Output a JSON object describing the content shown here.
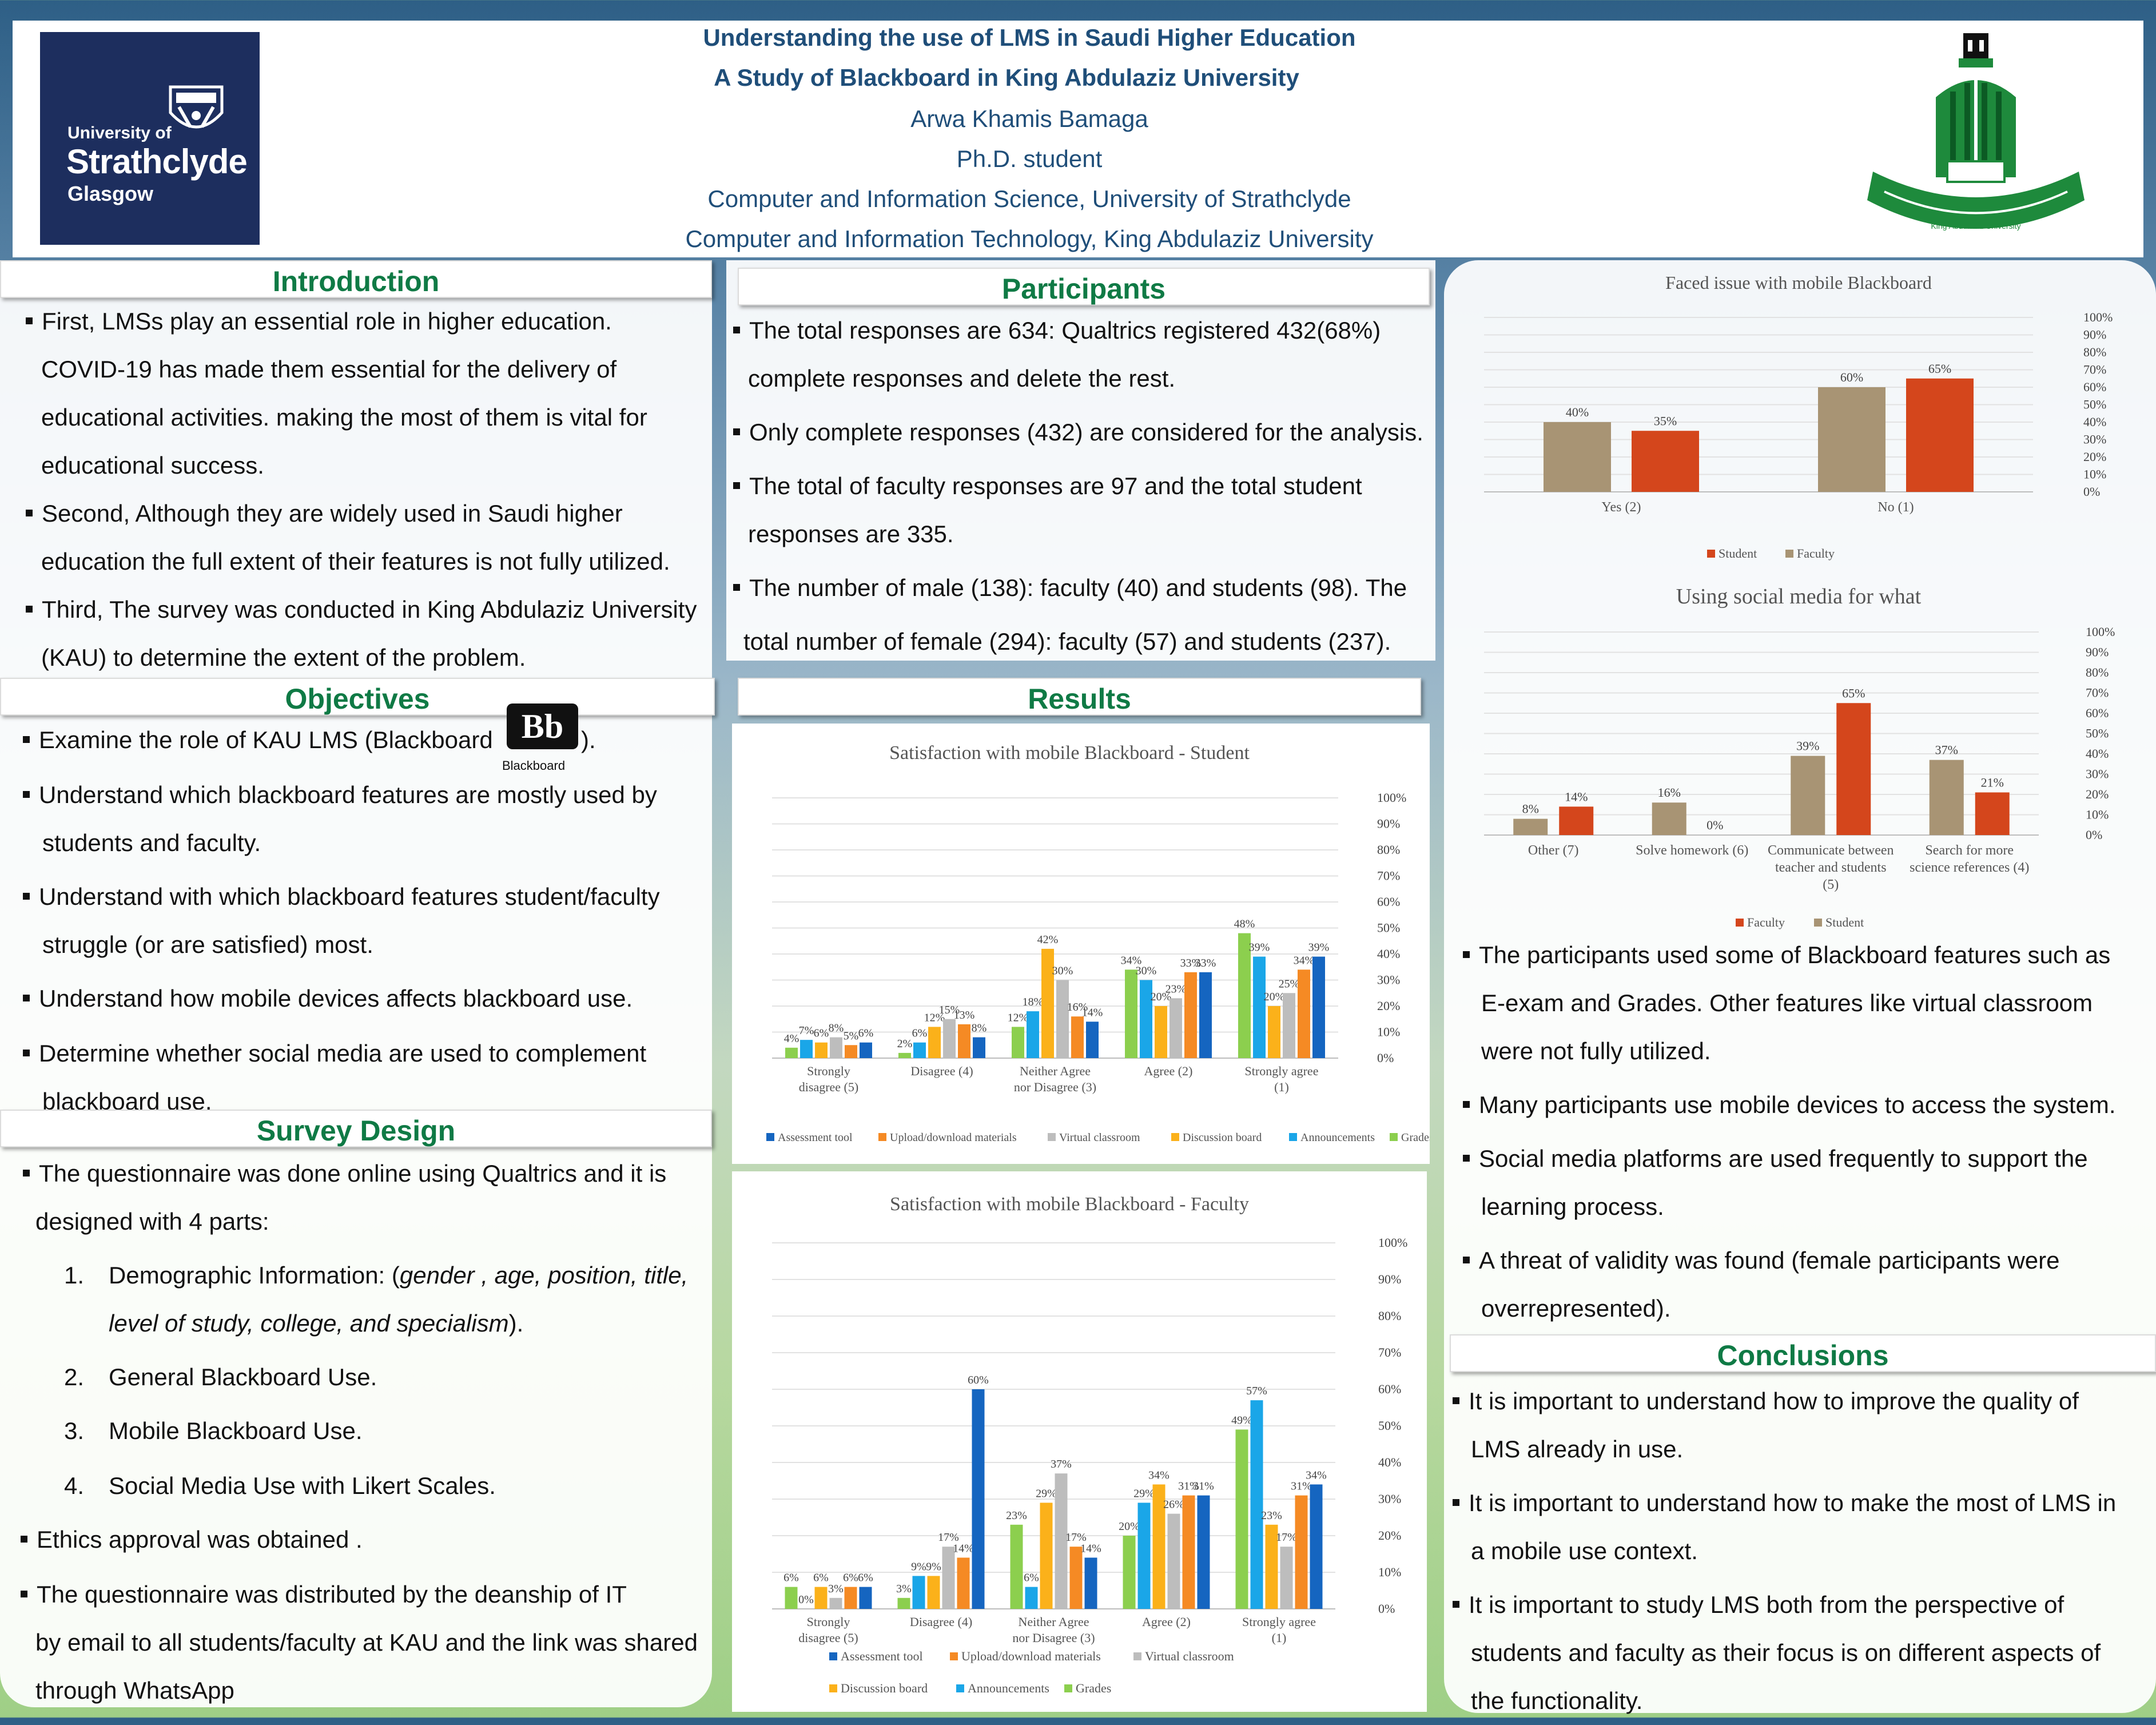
{
  "header": {
    "title1": "Understanding  the use of LMS in Saudi Higher Education",
    "title2": "A Study of Blackboard  in King Abdulaziz University",
    "author": "Arwa Khamis Bamaga",
    "role": "Ph.D. student",
    "affil1": "Computer and Information Science, University of Strathclyde",
    "affil2": "Computer and Information Technology, King Abdulaziz University",
    "strath_logo": {
      "l1": "University of",
      "l2": "Strathclyde",
      "l3": "Glasgow"
    },
    "kau_logo_text": "King Abdulaziz University"
  },
  "colors": {
    "heading": "#0f7a45",
    "title": "#1f4e79",
    "strath_navy": "#1d2e5e",
    "kau_green": "#1e8a3c",
    "student_brown": "#a89474",
    "faculty_orange": "#d4461c"
  },
  "introduction": {
    "heading": "Introduction",
    "lines": [
      "First, LMSs play an essential role in higher education.",
      "COVID-19 has made them essential for the delivery of",
      "educational activities. making the most of them is vital for",
      "educational success.",
      "Second, Although they are widely used in Saudi higher",
      "education the full extent of their features is not fully utilized.",
      "Third, The survey was conducted in King Abdulaziz University",
      "(KAU) to determine the extent of the problem."
    ]
  },
  "objectives": {
    "heading": "Objectives",
    "lines": [
      "Examine the role of  KAU LMS (Blackboard",
      ").",
      "Understand which blackboard features are mostly used by",
      "students and faculty.",
      "Understand with which blackboard features student/faculty",
      "struggle (or are satisfied) most.",
      "Understand how mobile devices affects blackboard use.",
      "Determine whether social media are used to complement",
      "blackboard use."
    ],
    "bb_logo": "Bb",
    "bb_caption": "Blackboard"
  },
  "survey": {
    "heading": "Survey Design",
    "lines": [
      "The questionnaire was done online using Qualtrics and it is",
      "designed with 4 parts:",
      "1.",
      "Demographic Information: (",
      "gender , age, position, title,",
      "level of study, college, and specialism",
      ").",
      "2.",
      "General Blackboard Use.",
      "3.",
      "Mobile Blackboard Use.",
      "4.",
      "Social Media Use with Likert Scales.",
      "Ethics approval was obtained .",
      "The questionnaire was distributed by the deanship of IT",
      "by email to all students/faculty at KAU and the link was shared",
      "through WhatsApp"
    ]
  },
  "participants": {
    "heading": "Participants",
    "lines": [
      "The total responses are 634: Qualtrics registered 432(68%)",
      "complete responses and delete the rest.",
      "Only complete responses (432) are considered for the analysis.",
      "The total of faculty responses are 97 and the total student",
      "responses are 335.",
      "The number of male (138): faculty (40) and students (98). The",
      "total number of female (294): faculty (57) and students (237)."
    ]
  },
  "results": {
    "heading": "Results"
  },
  "findings": {
    "lines": [
      "The participants used some of Blackboard features such as",
      "E-exam and Grades. Other features like virtual classroom",
      "were not fully utilized.",
      "Many participants use mobile devices to access the system.",
      "Social media platforms are used frequently to support the",
      "learning process.",
      "A threat of validity was found (female participants were",
      "overrepresented)."
    ]
  },
  "conclusions": {
    "heading": "Conclusions",
    "lines": [
      "It is important to understand how to improve the quality of",
      "LMS already in use.",
      "It is important to understand how to make the most of LMS in",
      "a mobile use context.",
      "It is important to study LMS both from the perspective of",
      "students and faculty as their focus is on different aspects of",
      "the functionality."
    ]
  },
  "chart_data": [
    {
      "type": "bar",
      "title": "Satisfaction with mobile Blackboard - Student",
      "categories": [
        "Strongly disagree (5)",
        "Disagree (4)",
        "Neither Agree nor Disagree (3)",
        "Agree (2)",
        "Strongly agree (1)"
      ],
      "ylim": [
        0,
        100
      ],
      "yticks": [
        "0%",
        "10%",
        "20%",
        "30%",
        "40%",
        "50%",
        "60%",
        "70%",
        "80%",
        "90%",
        "100%"
      ],
      "legend": "bottom",
      "series": [
        {
          "name": "Grades",
          "color": "#8ccf4e",
          "values": [
            4,
            2,
            12,
            34,
            48
          ]
        },
        {
          "name": "Announcements",
          "color": "#1aa6e8",
          "values": [
            7,
            6,
            18,
            30,
            39
          ]
        },
        {
          "name": "Discussion board",
          "color": "#fbb11a",
          "values": [
            6,
            12,
            42,
            20,
            20
          ]
        },
        {
          "name": "Virtual classroom",
          "color": "#bdbdbd",
          "values": [
            8,
            15,
            30,
            23,
            25
          ]
        },
        {
          "name": "Upload/download materials",
          "color": "#f58a24",
          "values": [
            5,
            13,
            16,
            33,
            34
          ]
        },
        {
          "name": "Assessment tool",
          "color": "#1565c0",
          "values": [
            6,
            8,
            14,
            33,
            39
          ]
        }
      ],
      "legend_order": [
        "Assessment tool",
        "Upload/download materials",
        "Virtual classroom",
        "Discussion board",
        "Announcements",
        "Grades"
      ]
    },
    {
      "type": "bar",
      "title": "Satisfaction with mobile Blackboard - Faculty",
      "categories": [
        "Strongly disagree (5)",
        "Disagree (4)",
        "Neither Agree nor Disagree (3)",
        "Agree (2)",
        "Strongly agree (1)"
      ],
      "ylim": [
        0,
        100
      ],
      "yticks": [
        "0%",
        "10%",
        "20%",
        "30%",
        "40%",
        "50%",
        "60%",
        "70%",
        "80%",
        "90%",
        "100%"
      ],
      "legend": "bottom",
      "series": [
        {
          "name": "Grades",
          "color": "#8ccf4e",
          "values": [
            6,
            3,
            23,
            20,
            49
          ]
        },
        {
          "name": "Announcements",
          "color": "#1aa6e8",
          "values": [
            0,
            9,
            6,
            29,
            57
          ]
        },
        {
          "name": "Discussion board",
          "color": "#fbb11a",
          "values": [
            6,
            9,
            29,
            34,
            23
          ]
        },
        {
          "name": "Virtual classroom",
          "color": "#bdbdbd",
          "values": [
            3,
            17,
            37,
            26,
            17
          ]
        },
        {
          "name": "Upload/download materials",
          "color": "#f58a24",
          "values": [
            6,
            14,
            17,
            31,
            31
          ]
        },
        {
          "name": "Assessment tool",
          "color": "#1565c0",
          "values": [
            6,
            60,
            14,
            31,
            34
          ]
        }
      ],
      "legend_order": [
        "Assessment tool",
        "Upload/download materials",
        "Virtual classroom",
        "Discussion board",
        "Announcements",
        "Grades"
      ]
    },
    {
      "type": "bar",
      "title": "Faced issue with mobile Blackboard",
      "categories": [
        "Yes (2)",
        "No (1)"
      ],
      "ylim": [
        0,
        100
      ],
      "yticks": [
        "0%",
        "10%",
        "20%",
        "30%",
        "40%",
        "50%",
        "60%",
        "70%",
        "80%",
        "90%",
        "100%"
      ],
      "legend": "bottom",
      "series": [
        {
          "name": "Faculty",
          "color": "#a89474",
          "values": [
            40,
            60
          ]
        },
        {
          "name": "Student",
          "color": "#d4461c",
          "values": [
            35,
            65
          ]
        }
      ],
      "legend_order": [
        "Student",
        "Faculty"
      ]
    },
    {
      "type": "bar",
      "title": "Using social media for what",
      "categories": [
        "Other (7)",
        "Solve homework (6)",
        "Communicate between teacher and students (5)",
        "Search for more science references (4)"
      ],
      "ylim": [
        0,
        100
      ],
      "yticks": [
        "0%",
        "10%",
        "20%",
        "30%",
        "40%",
        "50%",
        "60%",
        "70%",
        "80%",
        "90%",
        "100%"
      ],
      "legend": "bottom",
      "series": [
        {
          "name": "Student",
          "color": "#a89474",
          "values": [
            8,
            16,
            39,
            37
          ]
        },
        {
          "name": "Faculty",
          "color": "#d4461c",
          "values": [
            14,
            0,
            65,
            21
          ]
        }
      ],
      "legend_order": [
        "Faculty",
        "Student"
      ]
    }
  ]
}
